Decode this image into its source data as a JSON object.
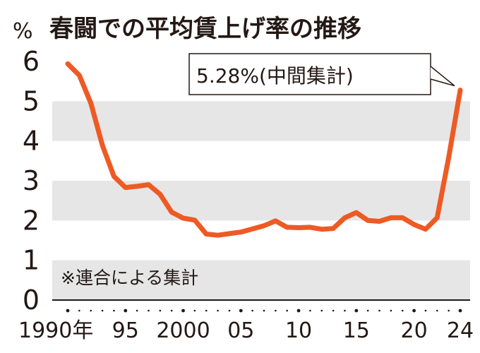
{
  "title": "春闘での平均賃上げ率の推移",
  "y_unit": "%",
  "note": "※連合による集計",
  "callout": {
    "value": "5.28%",
    "label": "(中間集計)"
  },
  "colors": {
    "line": "#ee5a24",
    "band": "#e6e6e7",
    "text": "#231815",
    "axis": "#231815"
  },
  "chart_data": {
    "type": "line",
    "title": "春闘での平均賃上げ率の推移",
    "ylabel": "%",
    "xlabel": "",
    "ylim": [
      0,
      6
    ],
    "xlim": [
      1990,
      2024
    ],
    "yticks": [
      0,
      1,
      2,
      3,
      4,
      5,
      6
    ],
    "xticks": [
      {
        "value": 1990,
        "label": "1990年"
      },
      {
        "value": 1995,
        "label": "95"
      },
      {
        "value": 2000,
        "label": "2000"
      },
      {
        "value": 2005,
        "label": "05"
      },
      {
        "value": 2010,
        "label": "10"
      },
      {
        "value": 2015,
        "label": "15"
      },
      {
        "value": 2020,
        "label": "20"
      },
      {
        "value": 2024,
        "label": "24"
      }
    ],
    "grid": "alternating horizontal bands",
    "series": [
      {
        "x": [
          1990,
          1991,
          1992,
          1993,
          1994,
          1995,
          1996,
          1997,
          1998,
          1999,
          2000,
          2001,
          2002,
          2003,
          2004,
          2005,
          2006,
          2007,
          2008,
          2009,
          2010,
          2011,
          2012,
          2013,
          2014,
          2015,
          2016,
          2017,
          2018,
          2019,
          2020,
          2021,
          2022,
          2023,
          2024
        ],
        "y": [
          5.94,
          5.65,
          4.95,
          3.89,
          3.11,
          2.83,
          2.86,
          2.9,
          2.66,
          2.21,
          2.06,
          2.01,
          1.66,
          1.63,
          1.67,
          1.71,
          1.79,
          1.87,
          1.99,
          1.83,
          1.82,
          1.83,
          1.78,
          1.8,
          2.07,
          2.2,
          2.0,
          1.98,
          2.07,
          2.07,
          1.9,
          1.78,
          2.07,
          3.58,
          5.28
        ]
      }
    ]
  }
}
